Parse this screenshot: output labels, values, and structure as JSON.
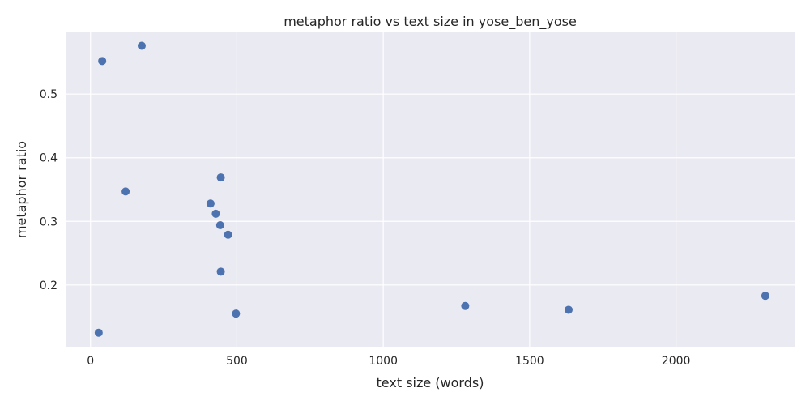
{
  "chart_data": {
    "type": "scatter",
    "title": "metaphor ratio vs text size in yose_ben_yose",
    "xlabel": "text size (words)",
    "ylabel": "metaphor ratio",
    "xlim": [
      -85,
      2405
    ],
    "ylim": [
      0.103,
      0.597
    ],
    "xticks": [
      0,
      500,
      1000,
      1500,
      2000
    ],
    "xtick_labels": [
      "0",
      "500",
      "1000",
      "1500",
      "2000"
    ],
    "yticks": [
      0.2,
      0.3,
      0.4,
      0.5
    ],
    "ytick_labels": [
      "0.2",
      "0.3",
      "0.4",
      "0.5"
    ],
    "grid": true,
    "point_color": "#4c72b0",
    "points": [
      {
        "x": 175,
        "y": 0.576
      },
      {
        "x": 40,
        "y": 0.552
      },
      {
        "x": 445,
        "y": 0.369
      },
      {
        "x": 120,
        "y": 0.347
      },
      {
        "x": 410,
        "y": 0.328
      },
      {
        "x": 428,
        "y": 0.312
      },
      {
        "x": 443,
        "y": 0.294
      },
      {
        "x": 470,
        "y": 0.279
      },
      {
        "x": 445,
        "y": 0.221
      },
      {
        "x": 1280,
        "y": 0.167
      },
      {
        "x": 1633,
        "y": 0.161
      },
      {
        "x": 2305,
        "y": 0.183
      },
      {
        "x": 497,
        "y": 0.155
      },
      {
        "x": 28,
        "y": 0.125
      }
    ]
  }
}
